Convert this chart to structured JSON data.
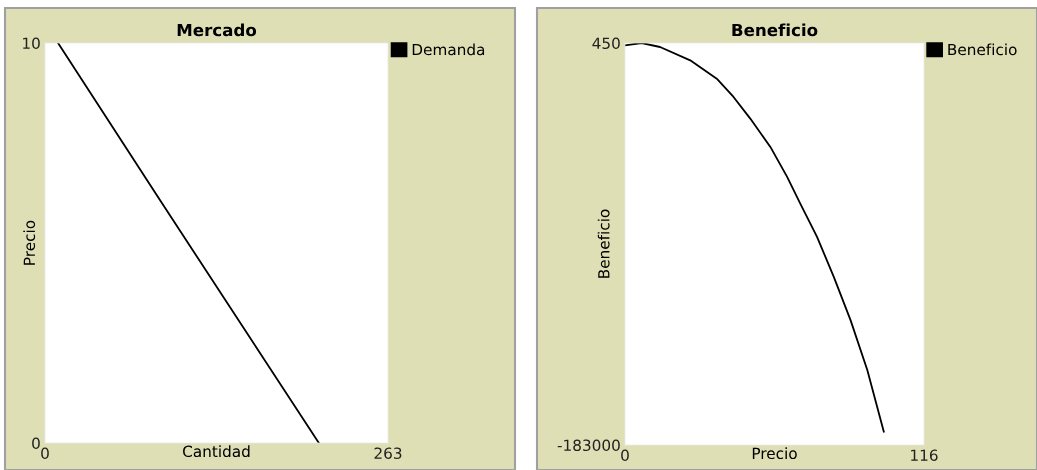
{
  "chart_data": [
    {
      "type": "line",
      "title": "Mercado",
      "xlabel": "Cantidad",
      "ylabel": "Precio",
      "xlim": [
        0,
        263
      ],
      "ylim": [
        0,
        10
      ],
      "xticks": [
        0,
        263
      ],
      "yticks": [
        0,
        10
      ],
      "legend": "top right",
      "grid": false,
      "series": [
        {
          "name": "Demanda",
          "color": "#000000",
          "x": [
            10,
            88,
            210
          ],
          "values": [
            10,
            6.08,
            0
          ]
        }
      ]
    },
    {
      "type": "line",
      "title": "Beneficio",
      "xlabel": "Precio",
      "ylabel": "Beneficio",
      "xlim": [
        0,
        116
      ],
      "ylim": [
        -183000,
        450
      ],
      "xticks": [
        0,
        116
      ],
      "yticks": [
        -183000,
        450
      ],
      "legend": "top right",
      "grid": false,
      "series": [
        {
          "name": "Beneficio",
          "color": "#000000",
          "x": [
            0,
            6.5,
            13.6,
            25.3,
            35.6,
            42.1,
            48.6,
            56.4,
            62.9,
            68.0,
            74.5,
            81.0,
            87.5,
            94.0,
            100.4
          ],
          "values": [
            -614,
            450,
            -1374,
            -7454,
            -15813,
            -24172,
            -34050,
            -46970,
            -60650,
            -72810,
            -88010,
            -106250,
            -126000,
            -148800,
            -176900
          ]
        }
      ]
    }
  ]
}
